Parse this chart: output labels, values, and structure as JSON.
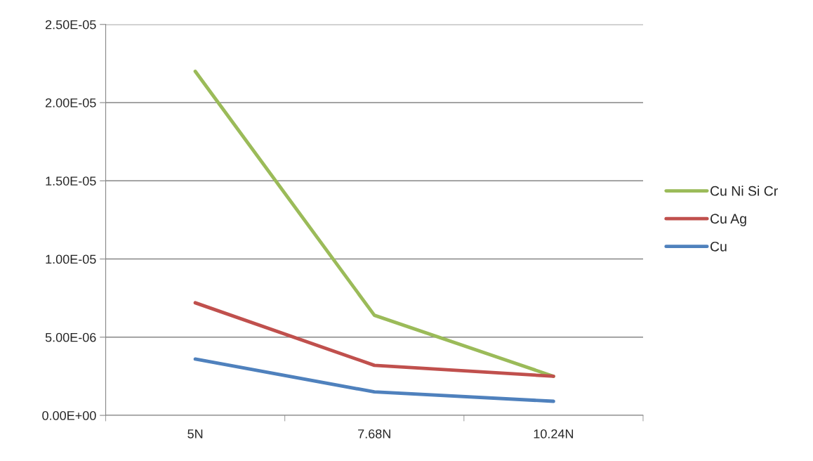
{
  "chart_data": {
    "type": "line",
    "categories": [
      "5N",
      "7.68N",
      "10.24N"
    ],
    "series": [
      {
        "name": "Cu Ni Si Cr",
        "color": "#9bbb59",
        "values": [
          2.2e-05,
          6.4e-06,
          2.5e-06
        ]
      },
      {
        "name": "Cu Ag",
        "color": "#c0504d",
        "values": [
          7.2e-06,
          3.2e-06,
          2.5e-06
        ]
      },
      {
        "name": "Cu",
        "color": "#4f81bd",
        "values": [
          3.6e-06,
          1.5e-06,
          9e-07
        ]
      }
    ],
    "ylim": [
      0,
      2.5e-05
    ],
    "yticks": [
      {
        "value": 0,
        "label": "0.00E+00"
      },
      {
        "value": 5e-06,
        "label": "5.00E-06"
      },
      {
        "value": 1e-05,
        "label": "1.00E-05"
      },
      {
        "value": 1.5e-05,
        "label": "1.50E-05"
      },
      {
        "value": 2e-05,
        "label": "2.00E-05"
      },
      {
        "value": 2.5e-05,
        "label": "2.50E-05"
      }
    ],
    "grid": "y",
    "legend": "right",
    "marker": "none",
    "line_style": "solid"
  }
}
